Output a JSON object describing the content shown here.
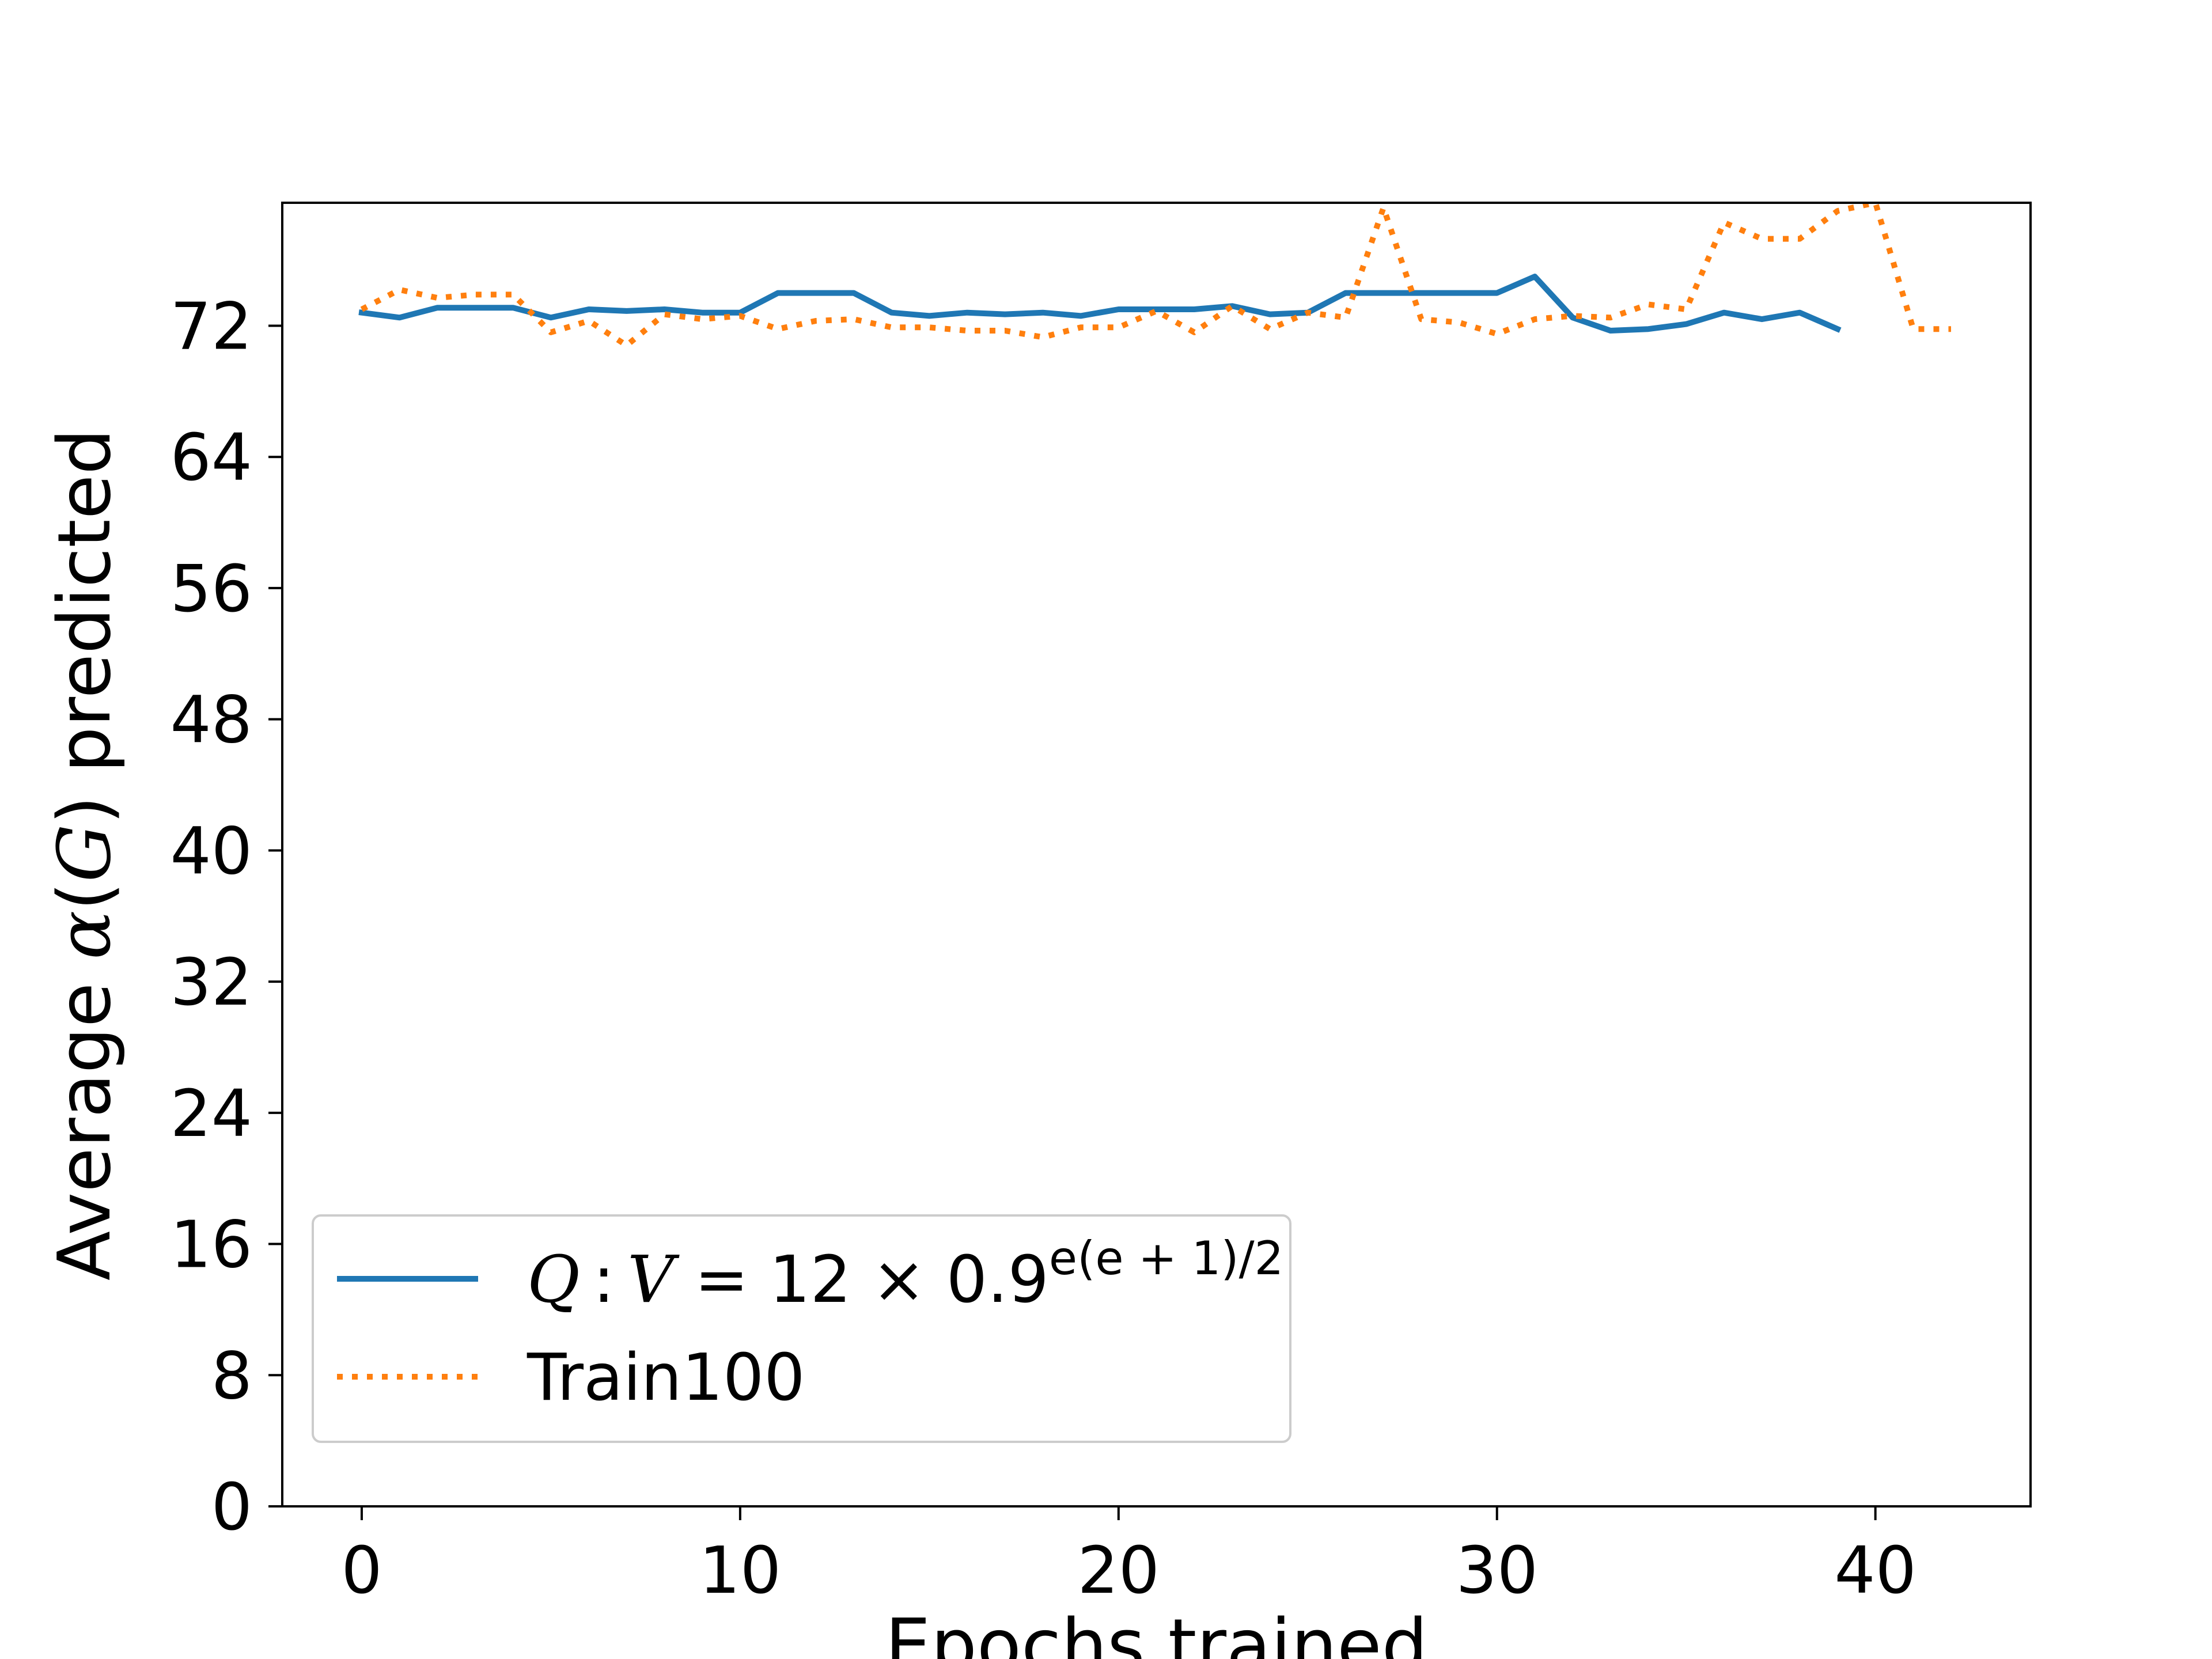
{
  "chart_data": {
    "type": "line",
    "title": "",
    "xlabel": "Epochs trained",
    "ylabel": "Average α(G) predicted",
    "xlim": [
      -2.1,
      44.1
    ],
    "ylim": [
      0,
      79.5
    ],
    "xticks": [
      0,
      10,
      20,
      30,
      40
    ],
    "yticks": [
      0,
      8,
      16,
      24,
      32,
      40,
      48,
      56,
      64,
      72
    ],
    "grid": false,
    "legend_position": "lower-left",
    "series": [
      {
        "name": "Q : V = 12 × 0.9^{e(e+1)/2}",
        "color": "#1f77b4",
        "style": "solid",
        "x": [
          0,
          1,
          2,
          3,
          4,
          5,
          6,
          7,
          8,
          9,
          10,
          11,
          12,
          13,
          14,
          15,
          16,
          17,
          18,
          19,
          20,
          21,
          22,
          23,
          24,
          25,
          26,
          27,
          28,
          29,
          30,
          31,
          32,
          33,
          34,
          35,
          36,
          37,
          38,
          39
        ],
        "y": [
          72.8,
          72.5,
          73.1,
          73.1,
          73.1,
          72.5,
          73.0,
          72.9,
          73.0,
          72.8,
          72.8,
          74.0,
          74.0,
          74.0,
          72.8,
          72.6,
          72.8,
          72.7,
          72.8,
          72.6,
          73.0,
          73.0,
          73.0,
          73.2,
          72.7,
          72.8,
          74.0,
          74.0,
          74.0,
          74.0,
          74.0,
          75.0,
          72.5,
          71.7,
          71.8,
          72.1,
          72.8,
          72.4,
          72.8,
          71.8
        ]
      },
      {
        "name": "Train100",
        "color": "#ff7f0e",
        "style": "dotted",
        "x": [
          0,
          1,
          2,
          3,
          4,
          5,
          6,
          7,
          8,
          9,
          10,
          11,
          12,
          13,
          14,
          15,
          16,
          17,
          18,
          19,
          20,
          21,
          22,
          23,
          24,
          25,
          26,
          27,
          28,
          29,
          30,
          31,
          32,
          33,
          34,
          35,
          36,
          37,
          38,
          39,
          40,
          41,
          42
        ],
        "y": [
          73.0,
          74.2,
          73.7,
          73.9,
          73.9,
          71.6,
          72.3,
          70.8,
          72.7,
          72.4,
          72.6,
          71.8,
          72.3,
          72.4,
          71.9,
          71.9,
          71.7,
          71.7,
          71.3,
          71.9,
          71.9,
          72.9,
          71.6,
          73.2,
          71.8,
          72.8,
          72.5,
          79.2,
          72.4,
          72.2,
          71.5,
          72.4,
          72.6,
          72.5,
          73.3,
          73.0,
          78.3,
          77.3,
          77.3,
          79.0,
          79.5,
          71.8,
          71.8
        ]
      }
    ]
  }
}
